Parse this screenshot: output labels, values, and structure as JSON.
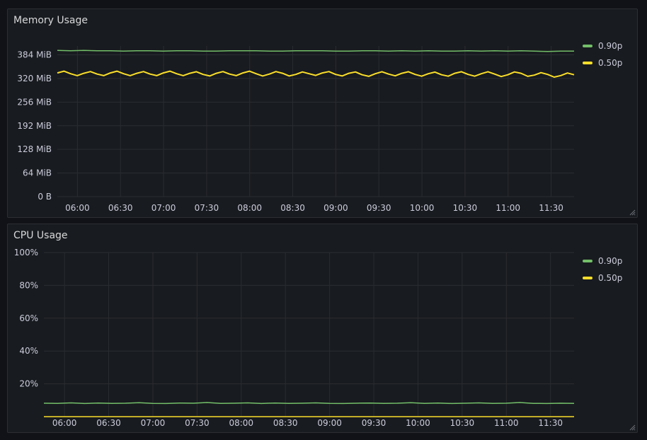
{
  "colors": {
    "p90": "#73bf69",
    "p50": "#fade2a",
    "grid": "#2a2c31",
    "axis_text": "#ccccdc"
  },
  "chart_data": [
    {
      "type": "line",
      "title": "Memory Usage",
      "x_labels": [
        "06:00",
        "06:30",
        "07:00",
        "07:30",
        "08:00",
        "08:30",
        "09:00",
        "09:30",
        "10:00",
        "10:30",
        "11:00",
        "11:30"
      ],
      "x_range": [
        "05:46",
        "11:46"
      ],
      "y_unit": "MiB",
      "y_ticks": [
        "0 B",
        "64 MiB",
        "128 MiB",
        "192 MiB",
        "256 MiB",
        "320 MiB",
        "384 MiB"
      ],
      "ylim": [
        0,
        408
      ],
      "legend_placement": "right",
      "series": [
        {
          "name": "0.90p",
          "color_key": "p90",
          "style": "smooth",
          "values": [
            396,
            395,
            396,
            395,
            395,
            394,
            395,
            395,
            394,
            395,
            395,
            394,
            394,
            395,
            395,
            395,
            394,
            394,
            395,
            395,
            395,
            394,
            394,
            395,
            395,
            394,
            395,
            394,
            395,
            394,
            394,
            395,
            394,
            395,
            394,
            395,
            394,
            393,
            394,
            394
          ]
        },
        {
          "name": "0.50p",
          "color_key": "p50",
          "style": "jagged",
          "values": [
            335,
            333,
            334,
            332,
            335,
            333,
            334,
            332,
            335,
            333,
            334,
            331,
            334,
            332,
            335,
            333,
            332,
            334,
            331,
            333,
            335,
            331,
            334,
            330,
            333,
            332,
            334,
            331,
            333,
            330,
            334,
            331,
            333,
            332,
            330,
            334,
            329,
            331,
            328,
            330
          ]
        }
      ]
    },
    {
      "type": "line",
      "title": "CPU Usage",
      "x_labels": [
        "06:00",
        "06:30",
        "07:00",
        "07:30",
        "08:00",
        "08:30",
        "09:00",
        "09:30",
        "10:00",
        "10:30",
        "11:00",
        "11:30"
      ],
      "x_range": [
        "05:46",
        "11:46"
      ],
      "y_unit": "%",
      "y_ticks": [
        "20%",
        "40%",
        "60%",
        "80%",
        "100%"
      ],
      "ylim": [
        0,
        100
      ],
      "legend_placement": "right",
      "series": [
        {
          "name": "0.90p",
          "color_key": "p90",
          "style": "smooth",
          "values": [
            8.2,
            8.1,
            8.4,
            8.0,
            8.3,
            8.1,
            8.2,
            8.5,
            8.1,
            8.0,
            8.3,
            8.2,
            8.6,
            8.1,
            8.2,
            8.4,
            8.0,
            8.3,
            8.1,
            8.2,
            8.4,
            8.1,
            8.0,
            8.2,
            8.3,
            8.1,
            8.2,
            8.5,
            8.1,
            8.3,
            8.0,
            8.2,
            8.4,
            8.1,
            8.2,
            8.6,
            8.1,
            8.0,
            8.2,
            8.1
          ]
        },
        {
          "name": "0.50p",
          "color_key": "p50",
          "style": "flat",
          "values": [
            0,
            0,
            0,
            0,
            0,
            0,
            0,
            0,
            0,
            0,
            0,
            0,
            0,
            0,
            0,
            0,
            0,
            0,
            0,
            0,
            0,
            0,
            0,
            0,
            0,
            0,
            0,
            0,
            0,
            0,
            0,
            0,
            0,
            0,
            0,
            0,
            0,
            0,
            0,
            0
          ]
        }
      ]
    }
  ]
}
